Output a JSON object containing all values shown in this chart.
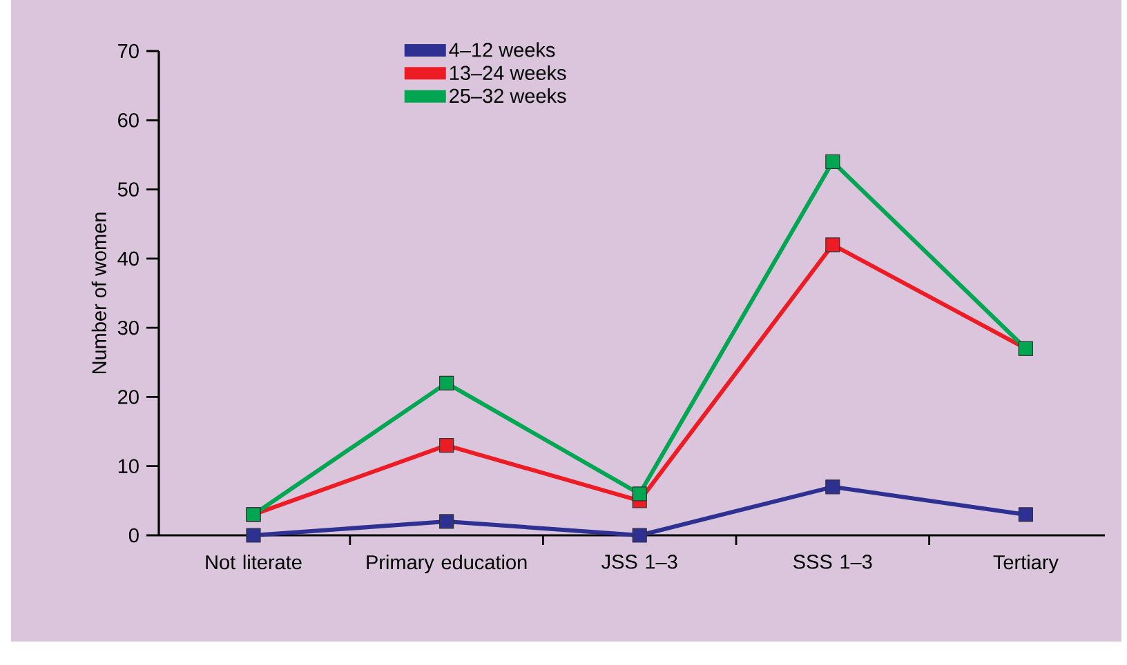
{
  "chart_data": {
    "type": "line",
    "ylabel": "Number of women",
    "categories": [
      "Not literate",
      "Primary education",
      "JSS 1–3",
      "SSS 1–3",
      "Tertiary"
    ],
    "series": [
      {
        "name": "4–12 weeks",
        "color": "#2e3192",
        "values": [
          0,
          2,
          0,
          7,
          3
        ]
      },
      {
        "name": "13–24 weeks",
        "color": "#ed1c24",
        "values": [
          3,
          13,
          5,
          42,
          27
        ]
      },
      {
        "name": "25–32 weeks",
        "color": "#00a651",
        "values": [
          3,
          22,
          6,
          54,
          27
        ]
      }
    ],
    "ylim": [
      0,
      70
    ],
    "yticks": [
      0,
      10,
      20,
      30,
      40,
      50,
      60,
      70
    ],
    "legend": "top",
    "marker": "square",
    "line_style": "solid",
    "grid": false
  }
}
